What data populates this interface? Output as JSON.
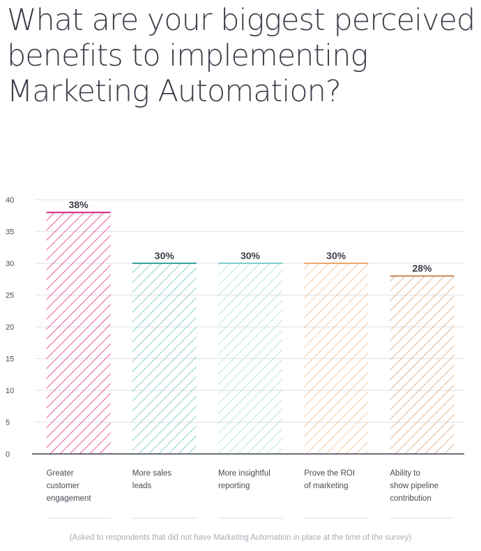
{
  "title_lines": [
    "What are your biggest perceived",
    "benefits to implementing",
    "Marketing Automation?"
  ],
  "footnote": "(Asked to respondents that did not have Marketing Automation in place at the time of the survey)",
  "chart_data": {
    "type": "bar",
    "title": "What are your biggest perceived benefits to implementing Marketing Automation?",
    "categories": [
      [
        "Greater",
        "customer",
        "engagement"
      ],
      [
        "More sales",
        "leads"
      ],
      [
        "More insightful",
        "reporting"
      ],
      [
        "Prove the ROI",
        "of marketing"
      ],
      [
        "Ability to",
        "show pipeline",
        "contribution"
      ]
    ],
    "values": [
      38,
      30,
      30,
      30,
      28
    ],
    "value_labels": [
      "38%",
      "30%",
      "30%",
      "30%",
      "28%"
    ],
    "yticks": [
      0,
      5,
      10,
      15,
      20,
      25,
      30,
      35,
      40
    ],
    "ylim": [
      0,
      40
    ],
    "xlabel": "",
    "ylabel": "",
    "grid": true,
    "bar_fill": "diagonal-hatch",
    "colors": [
      "#e8308a",
      "#6fc3c0",
      "#aadfd9",
      "#f2bb8c",
      "#d9a47a"
    ],
    "top_line_colors": [
      "#d4237c",
      "#3aa3a0",
      "#7ecbc6",
      "#eea56a",
      "#c9885a"
    ]
  }
}
